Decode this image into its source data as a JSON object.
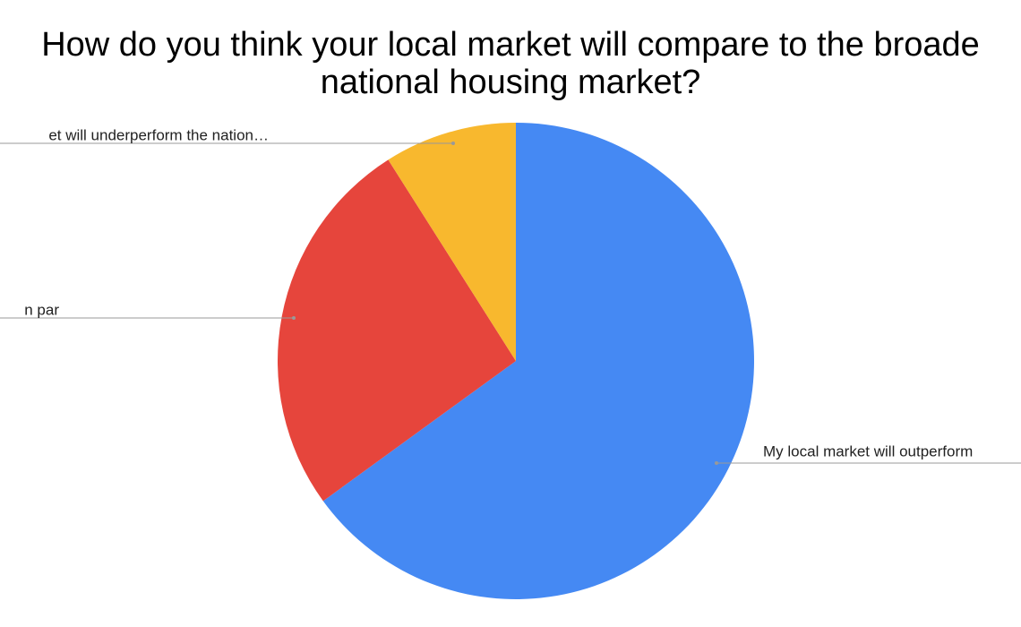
{
  "chart_data": {
    "type": "pie",
    "title": [
      "How do you think your local market will compare to the broade",
      "national housing market?"
    ],
    "categories": [
      "My local market will outperform",
      "n par",
      "et will underperform the nation…"
    ],
    "values": [
      65,
      26,
      9
    ],
    "colors": [
      "#4589f3",
      "#e6453c",
      "#f8b82e"
    ]
  }
}
